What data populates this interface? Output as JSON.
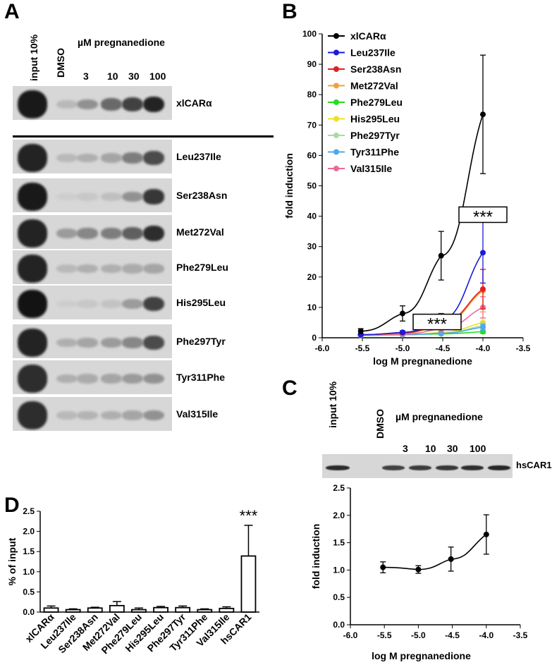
{
  "panels": {
    "a": "A",
    "b": "B",
    "c": "C",
    "d": "D"
  },
  "panel_a": {
    "input_label": "input 10%",
    "dmso_label": "DMSO",
    "conc_title": "µM pregnanedione",
    "concentrations": [
      "3",
      "10",
      "30",
      "100"
    ],
    "rows": [
      {
        "label": "xlCARα",
        "bands": [
          0.95,
          0.15,
          0.35,
          0.55,
          0.75,
          0.9
        ]
      },
      {
        "label": "Leu237Ile",
        "bands": [
          0.9,
          0.15,
          0.2,
          0.25,
          0.45,
          0.7
        ]
      },
      {
        "label": "Ser238Asn",
        "bands": [
          0.95,
          0.05,
          0.08,
          0.12,
          0.35,
          0.8
        ]
      },
      {
        "label": "Met272Val",
        "bands": [
          0.9,
          0.3,
          0.4,
          0.45,
          0.6,
          0.85
        ]
      },
      {
        "label": "Phe279Leu",
        "bands": [
          0.9,
          0.15,
          0.2,
          0.2,
          0.22,
          0.25
        ]
      },
      {
        "label": "His295Leu",
        "bands": [
          0.98,
          0.05,
          0.08,
          0.1,
          0.3,
          0.75
        ]
      },
      {
        "label": "Phe297Tyr",
        "bands": [
          0.9,
          0.2,
          0.25,
          0.3,
          0.4,
          0.7
        ]
      },
      {
        "label": "Tyr311Phe",
        "bands": [
          0.85,
          0.2,
          0.22,
          0.25,
          0.3,
          0.35
        ]
      },
      {
        "label": "Val315Ile",
        "bands": [
          0.85,
          0.15,
          0.18,
          0.2,
          0.25,
          0.35
        ]
      }
    ]
  },
  "panel_c": {
    "input_label": "input 10%",
    "dmso_label": "DMSO",
    "conc_title": "µM pregnanedione",
    "concentrations": [
      "3",
      "10",
      "30",
      "100"
    ],
    "row_label": "hsCAR1",
    "bands": [
      0.8,
      0.7,
      0.72,
      0.74,
      0.78,
      0.82
    ]
  },
  "chart_data": [
    {
      "type": "line",
      "panel": "B",
      "xlabel": "log M pregnanedione",
      "ylabel": "fold induction",
      "xlim": [
        -6.0,
        -3.5
      ],
      "ylim": [
        0,
        100
      ],
      "xticks": [
        "-6.0",
        "-5.5",
        "-5.0",
        "-4.5",
        "-4.0",
        "-3.5"
      ],
      "yticks": [
        "0",
        "10",
        "20",
        "30",
        "40",
        "50",
        "60",
        "70",
        "80",
        "90",
        "100"
      ],
      "legend_position": "top-left",
      "annotations": [
        "***",
        "***"
      ],
      "x": [
        -5.52,
        -5.0,
        -4.52,
        -4.0
      ],
      "series": [
        {
          "name": "xlCARα",
          "color": "#000000",
          "values": [
            2.2,
            8.0,
            27.0,
            73.5
          ],
          "errors": [
            0.8,
            2.5,
            8.0,
            19.5
          ]
        },
        {
          "name": "Leu237Ile",
          "color": "#1a1ad9",
          "values": [
            1.0,
            1.8,
            6.0,
            28.0
          ],
          "errors": [
            0.2,
            0.5,
            2.0,
            10.0
          ]
        },
        {
          "name": "Ser238Asn",
          "color": "#e02020",
          "values": [
            1.0,
            1.6,
            5.0,
            16.0
          ],
          "errors": [
            0.2,
            0.4,
            1.5,
            6.5
          ]
        },
        {
          "name": "Met272Val",
          "color": "#f0a040",
          "values": [
            1.0,
            1.5,
            4.5,
            15.5
          ],
          "errors": [
            0.2,
            0.4,
            1.5,
            7.0
          ]
        },
        {
          "name": "Phe279Leu",
          "color": "#22dd22",
          "values": [
            0.8,
            1.0,
            1.3,
            2.0
          ],
          "errors": [
            0.1,
            0.2,
            0.3,
            0.6
          ]
        },
        {
          "name": "His295Leu",
          "color": "#f0e020",
          "values": [
            0.8,
            1.0,
            1.8,
            5.0
          ],
          "errors": [
            0.1,
            0.2,
            0.4,
            1.5
          ]
        },
        {
          "name": "Phe297Tyr",
          "color": "#a8dca0",
          "values": [
            0.8,
            1.0,
            1.5,
            4.0
          ],
          "errors": [
            0.1,
            0.2,
            0.4,
            1.2
          ]
        },
        {
          "name": "Tyr311Phe",
          "color": "#50a8e8",
          "values": [
            0.8,
            1.0,
            1.5,
            3.5
          ],
          "errors": [
            0.1,
            0.2,
            0.4,
            1.0
          ]
        },
        {
          "name": "Val315Ile",
          "color": "#e86a9a",
          "values": [
            0.9,
            1.2,
            3.0,
            10.0
          ],
          "errors": [
            0.2,
            0.3,
            1.0,
            3.5
          ]
        }
      ]
    },
    {
      "type": "bar",
      "panel": "D",
      "ylabel": "% of input",
      "ylim": [
        0,
        2.5
      ],
      "yticks": [
        "0.0",
        "0.5",
        "1.0",
        "1.5",
        "2.0",
        "2.5"
      ],
      "categories": [
        "xlCARα",
        "Leu237Ile",
        "Ser238Asn",
        "Met272Val",
        "Phe279Leu",
        "His295Leu",
        "Phe297Tyr",
        "Tyr311Phe",
        "Val315Ile",
        "hsCAR1"
      ],
      "values": [
        0.1,
        0.06,
        0.1,
        0.16,
        0.06,
        0.11,
        0.11,
        0.06,
        0.09,
        1.39
      ],
      "errors": [
        0.05,
        0.02,
        0.02,
        0.1,
        0.04,
        0.03,
        0.04,
        0.02,
        0.04,
        0.76
      ],
      "annotations": [
        "***"
      ]
    },
    {
      "type": "line",
      "panel": "C",
      "xlabel": "log M pregnanedione",
      "ylabel": "fold induction",
      "xlim": [
        -6.0,
        -3.5
      ],
      "ylim": [
        0,
        2.5
      ],
      "xticks": [
        "-6.0",
        "-5.5",
        "-5.0",
        "-4.5",
        "-4.0",
        "-3.5"
      ],
      "yticks": [
        "0.0",
        "0.5",
        "1.0",
        "1.5",
        "2.0",
        "2.5"
      ],
      "x": [
        -5.52,
        -5.0,
        -4.52,
        -4.0
      ],
      "values": [
        1.05,
        1.01,
        1.2,
        1.65
      ],
      "errors": [
        0.1,
        0.07,
        0.22,
        0.36
      ]
    }
  ]
}
